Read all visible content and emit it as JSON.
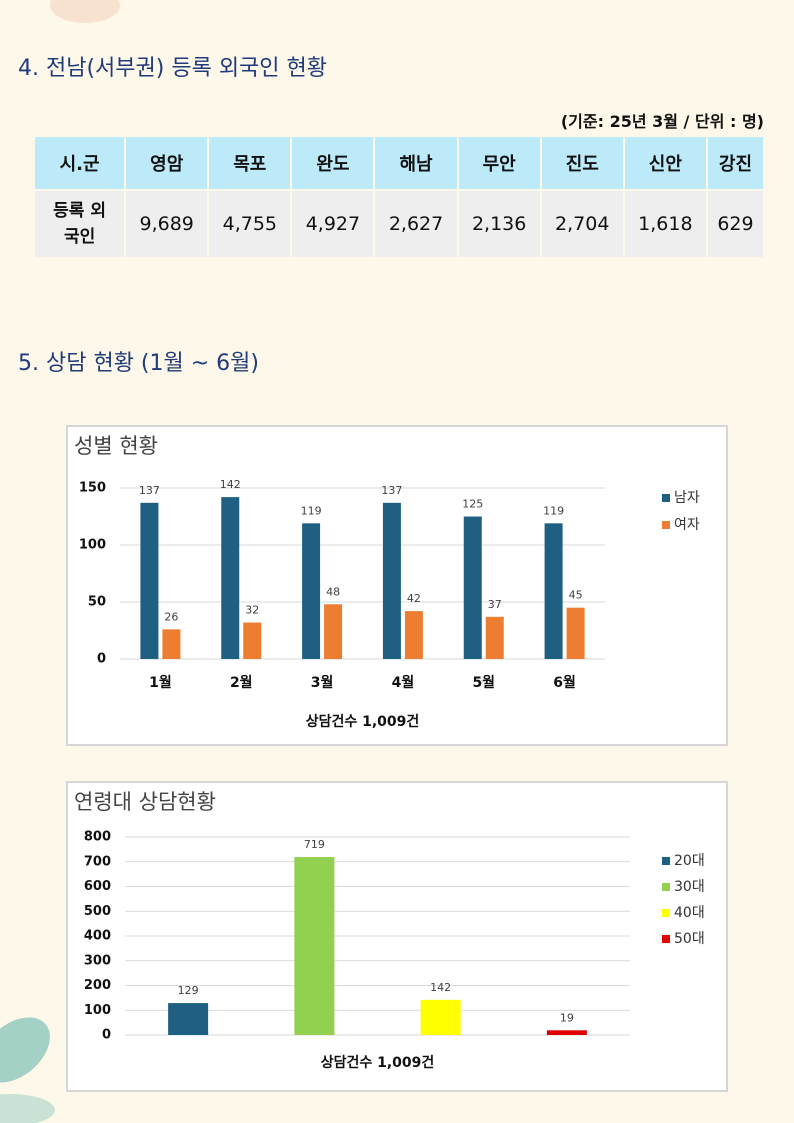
{
  "section4": {
    "heading": "4. 전남(서부권) 등록 외국인 현황",
    "note": "(기준: 25년 3월 / 단위 : 명)",
    "table": {
      "header": [
        "시.군",
        "영암",
        "목포",
        "완도",
        "해남",
        "무안",
        "진도",
        "신안",
        "강진"
      ],
      "row_label": "등록 외국인",
      "values": [
        "9,689",
        "4,755",
        "4,927",
        "2,627",
        "2,136",
        "2,704",
        "1,618",
        "629"
      ]
    }
  },
  "section5": {
    "heading": "5. 상담 현황 (1월 ~ 6월)"
  },
  "chart_data": [
    {
      "type": "bar",
      "title": "성별 현황",
      "xlabel": "상담건수  1,009건",
      "categories": [
        "1월",
        "2월",
        "3월",
        "4월",
        "5월",
        "6월"
      ],
      "series": [
        {
          "name": "남자",
          "color": "#1f5f82",
          "values": [
            137,
            142,
            119,
            137,
            125,
            119
          ]
        },
        {
          "name": "여자",
          "color": "#ed7d31",
          "values": [
            26,
            32,
            48,
            42,
            37,
            45
          ]
        }
      ],
      "ylim": [
        0,
        150
      ],
      "yticks": [
        0,
        50,
        100,
        150
      ],
      "grid": true,
      "legend": "right"
    },
    {
      "type": "bar",
      "title": "연령대 상담현황",
      "xlabel": "상담건수  1,009건",
      "categories": [
        "20대",
        "30대",
        "40대",
        "50대"
      ],
      "values": [
        129,
        719,
        142,
        19
      ],
      "colors": [
        "#1f5f82",
        "#92d050",
        "#ffff00",
        "#e00000"
      ],
      "ylim": [
        0,
        800
      ],
      "yticks": [
        0,
        100,
        200,
        300,
        400,
        500,
        600,
        700,
        800
      ],
      "grid": true,
      "legend": "right"
    }
  ]
}
